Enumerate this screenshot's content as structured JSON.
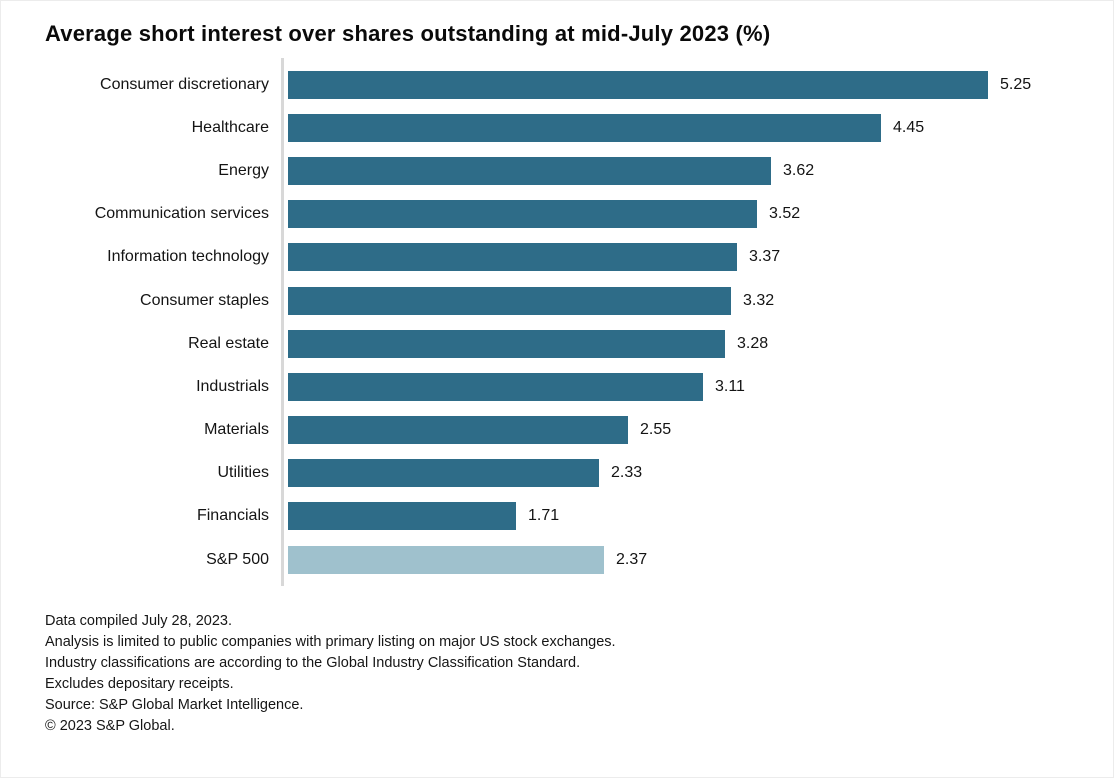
{
  "chart_data": {
    "type": "bar",
    "orientation": "horizontal",
    "title": "Average short interest over shares outstanding at mid-July 2023 (%)",
    "categories": [
      "Consumer discretionary",
      "Healthcare",
      "Energy",
      "Communication services",
      "Information technology",
      "Consumer staples",
      "Real estate",
      "Industrials",
      "Materials",
      "Utilities",
      "Financials",
      "S&P 500"
    ],
    "values": [
      5.25,
      4.45,
      3.62,
      3.52,
      3.37,
      3.32,
      3.28,
      3.11,
      2.55,
      2.33,
      1.71,
      2.37
    ],
    "value_labels": [
      "5.25",
      "4.45",
      "3.62",
      "3.52",
      "3.37",
      "3.32",
      "3.28",
      "3.11",
      "2.55",
      "2.33",
      "1.71",
      "2.37"
    ],
    "xlabel": "",
    "ylabel": "",
    "xlim": [
      0,
      5.25
    ],
    "grid": false,
    "legend": false,
    "bar_color": "#2E6C88",
    "highlight_bar_color": "#9FC1CD",
    "highlight_category": "S&P 500",
    "axis_line_color": "#d8d8d8"
  },
  "footnotes": [
    "Data compiled July 28, 2023.",
    "Analysis is limited to public companies with primary listing on major US stock exchanges.",
    "Industry classifications are according to the Global Industry Classification Standard.",
    "Excludes depositary receipts.",
    "Source: S&P Global Market Intelligence.",
    "© 2023 S&P Global."
  ]
}
